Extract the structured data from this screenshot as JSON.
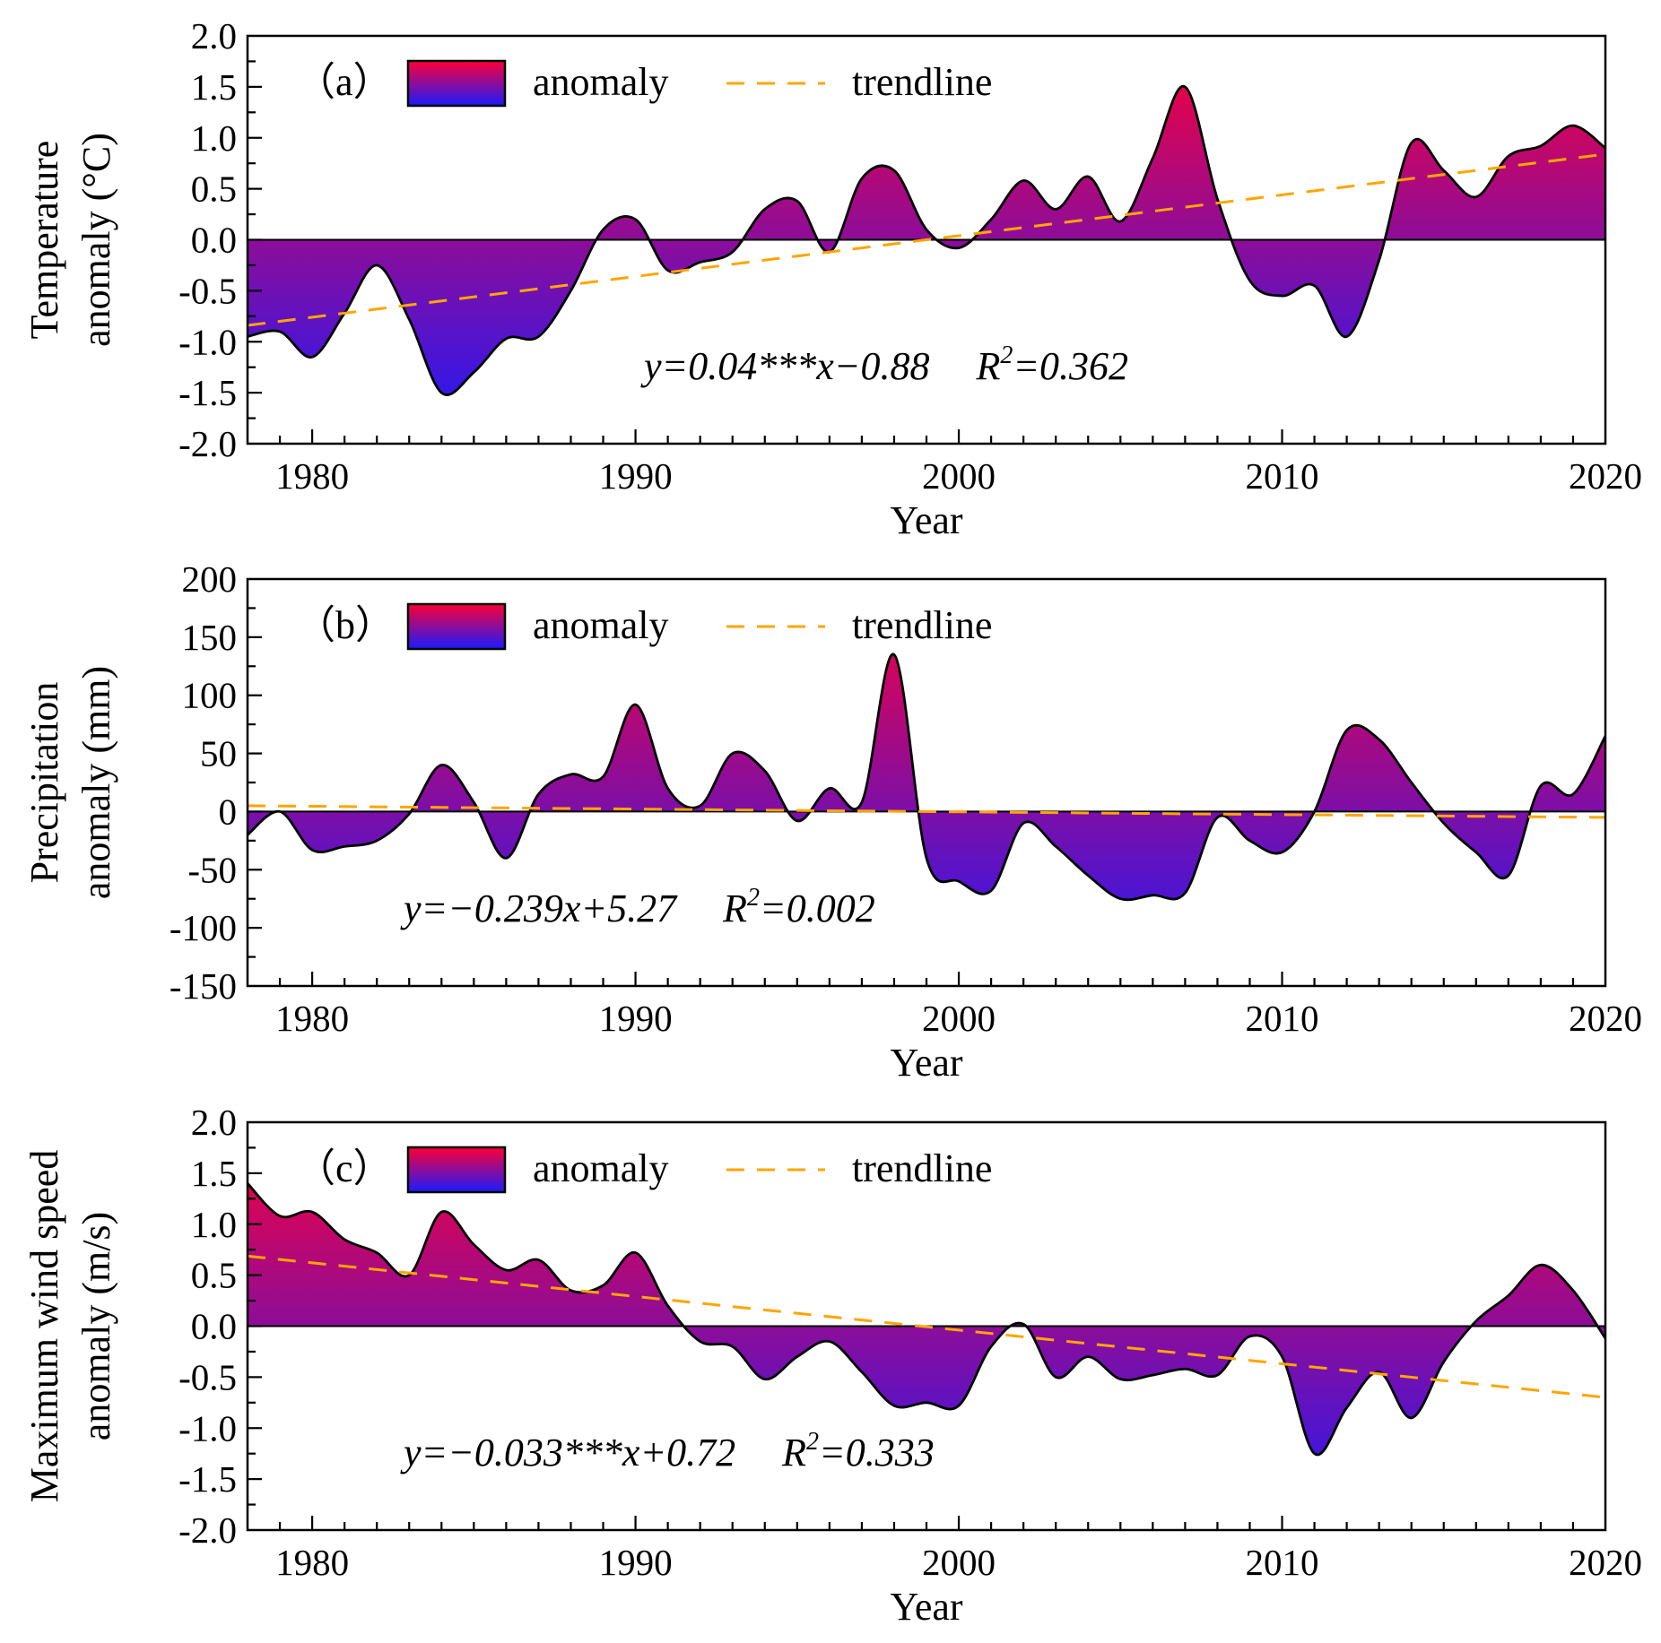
{
  "colors": {
    "positive": "#FF0033",
    "negative": "#1A1AFF",
    "trend": "#FFA500"
  },
  "chart_data": [
    {
      "type": "area",
      "panel_label": "（a）",
      "xlabel": "Year",
      "ylabel_lines": [
        "Temperature",
        "anomaly (°C)"
      ],
      "xlim": [
        1978,
        2020
      ],
      "ylim": [
        -2.0,
        2.0
      ],
      "xticks": [
        1980,
        1990,
        2000,
        2010,
        2020
      ],
      "xtick_labels": [
        "1980",
        "1990",
        "2000",
        "2010",
        "2020"
      ],
      "yticks": [
        -2.0,
        -1.5,
        -1.0,
        -0.5,
        0.0,
        0.5,
        1.0,
        1.5,
        2.0
      ],
      "ytick_labels": [
        "-2.0",
        "-1.5",
        "-1.0",
        "-0.5",
        "0.0",
        "0.5",
        "1.0",
        "1.5",
        "2.0"
      ],
      "legend": {
        "anomaly": "anomaly",
        "trendline": "trendline",
        "position": "top-left"
      },
      "equation": "y=0.04***x−0.88",
      "r2_prefix": "R",
      "r2_exp": "2",
      "r2_value": "=0.362",
      "trend": {
        "slope": 0.04,
        "intercept": -0.88
      },
      "series": [
        {
          "name": "anomaly",
          "x": [
            1978,
            1979,
            1980,
            1981,
            1982,
            1983,
            1984,
            1985,
            1986,
            1987,
            1988,
            1989,
            1990,
            1991,
            1992,
            1993,
            1994,
            1995,
            1996,
            1997,
            1998,
            1999,
            2000,
            2001,
            2002,
            2003,
            2004,
            2005,
            2006,
            2007,
            2008,
            2009,
            2010,
            2011,
            2012,
            2013,
            2014,
            2015,
            2016,
            2017,
            2018,
            2019,
            2020
          ],
          "values": [
            -0.95,
            -0.9,
            -1.15,
            -0.72,
            -0.25,
            -0.78,
            -1.5,
            -1.3,
            -0.97,
            -0.95,
            -0.5,
            0.1,
            0.2,
            -0.3,
            -0.22,
            -0.12,
            0.3,
            0.38,
            -0.12,
            0.6,
            0.68,
            0.1,
            -0.08,
            0.2,
            0.58,
            0.3,
            0.62,
            0.18,
            0.8,
            1.5,
            0.4,
            -0.4,
            -0.55,
            -0.45,
            -0.95,
            -0.2,
            0.95,
            0.68,
            0.42,
            0.82,
            0.92,
            1.12,
            0.9
          ]
        }
      ]
    },
    {
      "type": "area",
      "panel_label": "（b）",
      "xlabel": "Year",
      "ylabel_lines": [
        "Precipitation",
        "anomaly (mm)"
      ],
      "xlim": [
        1978,
        2020
      ],
      "ylim": [
        -150,
        200
      ],
      "xticks": [
        1980,
        1990,
        2000,
        2010,
        2020
      ],
      "xtick_labels": [
        "1980",
        "1990",
        "2000",
        "2010",
        "2020"
      ],
      "yticks": [
        -150,
        -100,
        -50,
        0,
        50,
        100,
        150,
        200
      ],
      "ytick_labels": [
        "-150",
        "-100",
        "-50",
        "0",
        "50",
        "100",
        "150",
        "200"
      ],
      "legend": {
        "anomaly": "anomaly",
        "trendline": "trendline",
        "position": "top-left"
      },
      "equation": "y=−0.239x+5.27",
      "r2_prefix": "R",
      "r2_exp": "2",
      "r2_value": "=0.002",
      "trend": {
        "slope": -0.239,
        "intercept": 5.27
      },
      "series": [
        {
          "name": "anomaly",
          "x": [
            1978,
            1979,
            1980,
            1981,
            1982,
            1983,
            1984,
            1985,
            1986,
            1987,
            1988,
            1989,
            1990,
            1991,
            1992,
            1993,
            1994,
            1995,
            1996,
            1997,
            1998,
            1999,
            2000,
            2001,
            2002,
            2003,
            2004,
            2005,
            2006,
            2007,
            2008,
            2009,
            2010,
            2011,
            2012,
            2013,
            2014,
            2015,
            2016,
            2017,
            2018,
            2019,
            2020
          ],
          "values": [
            -20,
            0,
            -33,
            -30,
            -25,
            -2,
            40,
            8,
            -40,
            15,
            32,
            30,
            92,
            20,
            5,
            50,
            35,
            -8,
            20,
            8,
            135,
            -40,
            -60,
            -68,
            -10,
            -30,
            -55,
            -75,
            -72,
            -70,
            -5,
            -25,
            -35,
            0,
            70,
            62,
            25,
            -10,
            -35,
            -55,
            22,
            15,
            65
          ]
        }
      ]
    },
    {
      "type": "area",
      "panel_label": "（c）",
      "xlabel": "Year",
      "ylabel_lines": [
        "Maximum wind speed",
        "anomaly (m/s)"
      ],
      "xlim": [
        1978,
        2020
      ],
      "ylim": [
        -2.0,
        2.0
      ],
      "xticks": [
        1980,
        1990,
        2000,
        2010,
        2020
      ],
      "xtick_labels": [
        "1980",
        "1990",
        "2000",
        "2010",
        "2020"
      ],
      "yticks": [
        -2.0,
        -1.5,
        -1.0,
        -0.5,
        0.0,
        0.5,
        1.0,
        1.5,
        2.0
      ],
      "ytick_labels": [
        "-2.0",
        "-1.5",
        "-1.0",
        "-0.5",
        "0.0",
        "0.5",
        "1.0",
        "1.5",
        "2.0"
      ],
      "legend": {
        "anomaly": "anomaly",
        "trendline": "trendline",
        "position": "top-left"
      },
      "equation": "y=−0.033***x+0.72",
      "r2_prefix": "R",
      "r2_exp": "2",
      "r2_value": "=0.333",
      "trend": {
        "slope": -0.033,
        "intercept": 0.72
      },
      "series": [
        {
          "name": "anomaly",
          "x": [
            1978,
            1979,
            1980,
            1981,
            1982,
            1983,
            1984,
            1985,
            1986,
            1987,
            1988,
            1989,
            1990,
            1991,
            1992,
            1993,
            1994,
            1995,
            1996,
            1997,
            1998,
            1999,
            2000,
            2001,
            2002,
            2003,
            2004,
            2005,
            2006,
            2007,
            2008,
            2009,
            2010,
            2011,
            2012,
            2013,
            2014,
            2015,
            2016,
            2017,
            2018,
            2019,
            2020
          ],
          "values": [
            1.4,
            1.08,
            1.12,
            0.85,
            0.72,
            0.5,
            1.12,
            0.8,
            0.55,
            0.65,
            0.35,
            0.4,
            0.72,
            0.2,
            -0.15,
            -0.2,
            -0.52,
            -0.3,
            -0.15,
            -0.45,
            -0.78,
            -0.75,
            -0.78,
            -0.2,
            0.02,
            -0.5,
            -0.3,
            -0.52,
            -0.48,
            -0.42,
            -0.48,
            -0.1,
            -0.3,
            -1.25,
            -0.8,
            -0.45,
            -0.9,
            -0.35,
            0.05,
            0.3,
            0.6,
            0.35,
            -0.12
          ]
        }
      ]
    }
  ]
}
